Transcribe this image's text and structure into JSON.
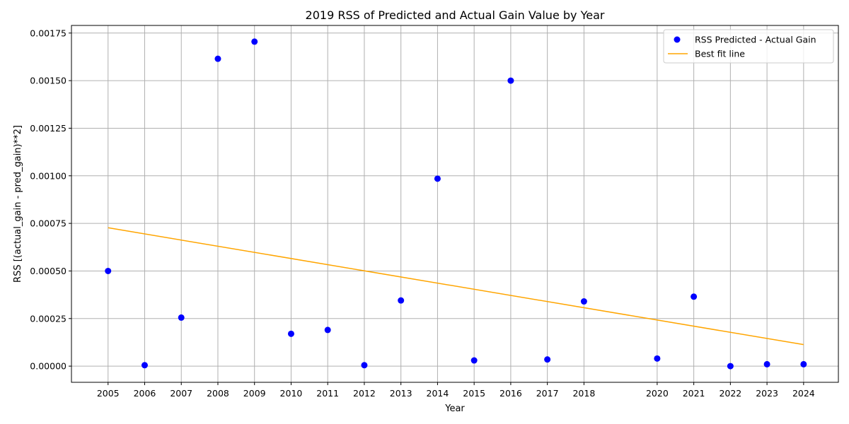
{
  "chart_data": {
    "type": "scatter",
    "title": "2019 RSS of Predicted and Actual Gain Value by Year",
    "xlabel": "Year",
    "ylabel": "RSS [(actual_gain - pred_gain)**2]",
    "xlim": [
      2004.0,
      2024.95
    ],
    "ylim": [
      -8.5e-05,
      0.00179
    ],
    "x_ticks": [
      2005,
      2006,
      2007,
      2008,
      2009,
      2010,
      2011,
      2012,
      2013,
      2014,
      2015,
      2016,
      2017,
      2018,
      2020,
      2021,
      2022,
      2023,
      2024
    ],
    "y_ticks": [
      0.0,
      0.00025,
      0.0005,
      0.00075,
      0.001,
      0.00125,
      0.0015,
      0.00175
    ],
    "y_tick_labels": [
      "0.00000",
      "0.00025",
      "0.00050",
      "0.00075",
      "0.00100",
      "0.00125",
      "0.00150",
      "0.00175"
    ],
    "grid": true,
    "legend_position": "top-right",
    "series": [
      {
        "name": "RSS Predicted - Actual Gain",
        "kind": "scatter",
        "color": "#0000ff",
        "points": [
          {
            "x": 2005,
            "y": 0.0005
          },
          {
            "x": 2006,
            "y": 5e-06
          },
          {
            "x": 2007,
            "y": 0.000255
          },
          {
            "x": 2008,
            "y": 0.001615
          },
          {
            "x": 2009,
            "y": 0.001705
          },
          {
            "x": 2010,
            "y": 0.00017
          },
          {
            "x": 2011,
            "y": 0.00019
          },
          {
            "x": 2012,
            "y": 5e-06
          },
          {
            "x": 2013,
            "y": 0.000345
          },
          {
            "x": 2014,
            "y": 0.000985
          },
          {
            "x": 2015,
            "y": 3e-05
          },
          {
            "x": 2016,
            "y": 0.0015
          },
          {
            "x": 2017,
            "y": 3.5e-05
          },
          {
            "x": 2018,
            "y": 0.00034
          },
          {
            "x": 2020,
            "y": 4e-05
          },
          {
            "x": 2021,
            "y": 0.000365
          },
          {
            "x": 2022,
            "y": 0.0
          },
          {
            "x": 2023,
            "y": 1e-05
          },
          {
            "x": 2024,
            "y": 1e-05
          }
        ]
      },
      {
        "name": "Best fit line",
        "kind": "line",
        "color": "#ffa500",
        "points": [
          {
            "x": 2005,
            "y": 0.000727
          },
          {
            "x": 2024,
            "y": 0.000113
          }
        ]
      }
    ]
  }
}
